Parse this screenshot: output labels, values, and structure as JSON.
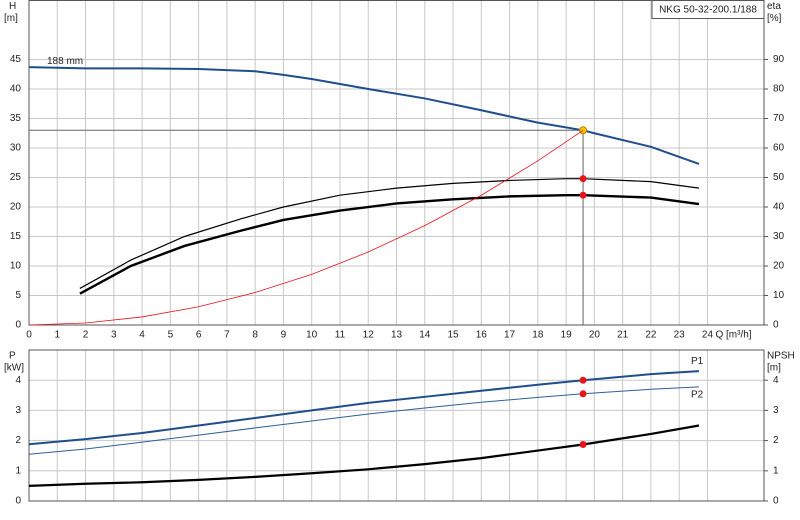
{
  "chart_data": [
    {
      "type": "line",
      "title": "NKG 50-32-200.1/188",
      "ylabel": "H",
      "yunit": "[m]",
      "y2label": "eta",
      "y2unit": "[%]",
      "xlabel": "Q [m³/h]",
      "xlim": [
        0,
        26
      ],
      "ylim": [
        0,
        55
      ],
      "y2lim": [
        0,
        110
      ],
      "xticks": [
        0,
        1,
        2,
        3,
        4,
        5,
        6,
        7,
        8,
        9,
        10,
        11,
        12,
        13,
        14,
        15,
        16,
        17,
        18,
        19,
        20,
        21,
        22,
        23,
        24
      ],
      "yticks": [
        0,
        5,
        10,
        15,
        20,
        25,
        30,
        35,
        40,
        45
      ],
      "y2ticks": [
        0,
        10,
        20,
        30,
        40,
        50,
        60,
        70,
        80,
        90
      ],
      "grid": true,
      "xtick_labels": true,
      "duty_x": 19.6,
      "duty_guides": true,
      "series": [
        {
          "name": "188 mm",
          "name_at": "start",
          "color": "#1f4e8c",
          "width": 2,
          "x": [
            0,
            2,
            4,
            6,
            8,
            9,
            10,
            12,
            14,
            16,
            18,
            19.6,
            20,
            22,
            23.7
          ],
          "values": [
            43.7,
            43.5,
            43.5,
            43.4,
            43.0,
            42.4,
            41.7,
            40.0,
            38.4,
            36.4,
            34.3,
            33.0,
            32.5,
            30.2,
            27.3
          ],
          "duty_value": 33,
          "duty_color": "#f5c400"
        },
        {
          "color": "#000000",
          "width": 1.2,
          "axis": "y2",
          "x": [
            1.8,
            3.6,
            5.5,
            7.5,
            9,
            11,
            13,
            15,
            17,
            19,
            19.6,
            22,
            23.7
          ],
          "values": [
            12.4,
            22,
            30,
            36,
            40,
            44,
            46.4,
            48,
            49,
            49.6,
            49.6,
            48.6,
            46.4
          ],
          "duty_value": 49.6,
          "duty_color": "#e8141c"
        },
        {
          "color": "#000000",
          "width": 2.4,
          "axis": "y2",
          "x": [
            1.8,
            3.6,
            5.5,
            7.5,
            9,
            11,
            13,
            15,
            17,
            19,
            19.6,
            22,
            23.7
          ],
          "values": [
            10.6,
            20,
            26.8,
            32,
            35.6,
            38.8,
            41.2,
            42.6,
            43.6,
            44,
            44,
            43.2,
            41
          ],
          "duty_value": 44,
          "duty_color": "#e8141c"
        },
        {
          "color": "#e8141c",
          "width": 0.8,
          "x": [
            0,
            2,
            4,
            6,
            8,
            10,
            12,
            14,
            16,
            18,
            19.6
          ],
          "values": [
            0,
            0.34,
            1.37,
            3.09,
            5.5,
            8.59,
            12.37,
            16.84,
            21.99,
            27.83,
            33
          ]
        }
      ]
    },
    {
      "type": "line",
      "ylabel": "P",
      "yunit": "[kW]",
      "y2label": "NPSH",
      "y2unit": "[m]",
      "xlim": [
        0,
        26
      ],
      "ylim": [
        0,
        5
      ],
      "y2lim": [
        0,
        5
      ],
      "xticks": [
        0,
        1,
        2,
        3,
        4,
        5,
        6,
        7,
        8,
        9,
        10,
        11,
        12,
        13,
        14,
        15,
        16,
        17,
        18,
        19,
        20,
        21,
        22,
        23,
        24
      ],
      "yticks": [
        0,
        1,
        2,
        3,
        4
      ],
      "y2ticks": [
        0,
        1,
        2,
        3,
        4
      ],
      "grid": true,
      "xtick_labels": false,
      "duty_x": 19.6,
      "duty_guides": false,
      "series": [
        {
          "name": "P1",
          "name_at": "end-above",
          "color": "#1f4e8c",
          "width": 2,
          "x": [
            0,
            2,
            4,
            6,
            8,
            10,
            12,
            14,
            16,
            18,
            19.6,
            22,
            23.7
          ],
          "values": [
            1.88,
            2.05,
            2.25,
            2.5,
            2.75,
            3.0,
            3.25,
            3.45,
            3.65,
            3.85,
            4.0,
            4.2,
            4.3
          ],
          "duty_value": 4.0,
          "duty_color": "#e8141c"
        },
        {
          "name": "P2",
          "name_at": "end-below",
          "color": "#2d5f9a",
          "width": 1,
          "x": [
            0,
            2,
            4,
            6,
            8,
            10,
            12,
            14,
            16,
            18,
            19.6,
            22,
            23.7
          ],
          "values": [
            1.55,
            1.72,
            1.95,
            2.18,
            2.42,
            2.65,
            2.88,
            3.08,
            3.27,
            3.43,
            3.55,
            3.7,
            3.78
          ],
          "duty_value": 3.55,
          "duty_color": "#e8141c"
        },
        {
          "color": "#000000",
          "width": 2.2,
          "axis": "y2",
          "x": [
            0,
            2,
            4,
            6,
            8,
            10,
            12,
            14,
            16,
            18,
            19.6,
            22,
            23.7
          ],
          "values": [
            0.5,
            0.57,
            0.62,
            0.7,
            0.8,
            0.92,
            1.05,
            1.22,
            1.42,
            1.67,
            1.87,
            2.22,
            2.5
          ],
          "duty_value": 1.87,
          "duty_color": "#e8141c"
        }
      ]
    }
  ]
}
